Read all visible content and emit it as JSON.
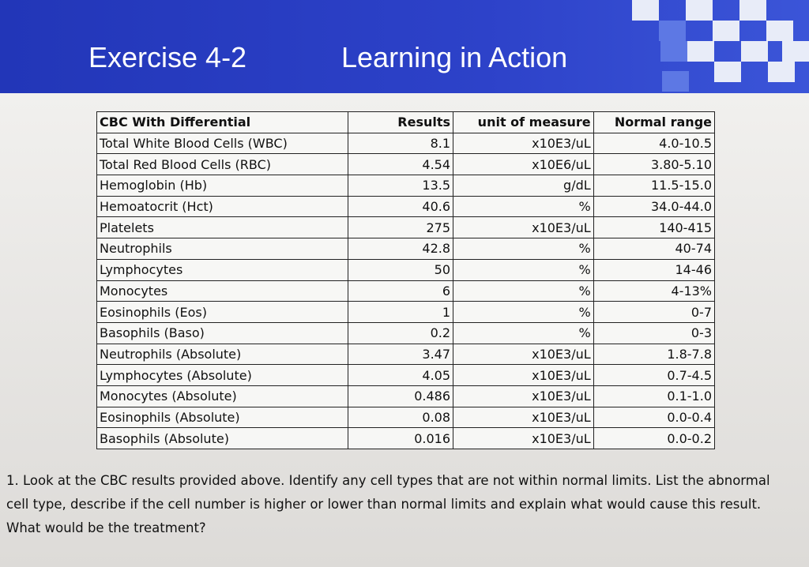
{
  "header": {
    "exercise": "Exercise 4-2",
    "title": "Learning in Action"
  },
  "table": {
    "columns": [
      "CBC With Differential",
      "Results",
      "unit of measure",
      "Normal range"
    ],
    "rows": [
      [
        "Total White Blood Cells (WBC)",
        "8.1",
        "x10E3/uL",
        "4.0-10.5"
      ],
      [
        "Total Red Blood Cells (RBC)",
        "4.54",
        "x10E6/uL",
        "3.80-5.10"
      ],
      [
        "Hemoglobin (Hb)",
        "13.5",
        "g/dL",
        "11.5-15.0"
      ],
      [
        "Hemoatocrit (Hct)",
        "40.6",
        "%",
        "34.0-44.0"
      ],
      [
        "Platelets",
        "275",
        "x10E3/uL",
        "140-415"
      ],
      [
        "Neutrophils",
        "42.8",
        "%",
        "40-74"
      ],
      [
        "Lymphocytes",
        "50",
        "%",
        "14-46"
      ],
      [
        "Monocytes",
        "6",
        "%",
        "4-13%"
      ],
      [
        "Eosinophils (Eos)",
        "1",
        "%",
        "0-7"
      ],
      [
        "Basophils (Baso)",
        "0.2",
        "%",
        "0-3"
      ],
      [
        "Neutrophils (Absolute)",
        "3.47",
        "x10E3/uL",
        "1.8-7.8"
      ],
      [
        "Lymphocytes (Absolute)",
        "4.05",
        "x10E3/uL",
        "0.7-4.5"
      ],
      [
        "Monocytes (Absolute)",
        "0.486",
        "x10E3/uL",
        "0.1-1.0"
      ],
      [
        "Eosinophils (Absolute)",
        "0.08",
        "x10E3/uL",
        "0.0-0.4"
      ],
      [
        "Basophils (Absolute)",
        "0.016",
        "x10E3/uL",
        "0.0-0.2"
      ]
    ]
  },
  "question": "1. Look at the CBC results provided above. Identify any cell types that are not within normal limits. List the abnormal cell type, describe if the cell number is higher or lower than normal limits and explain what would cause this result. What would be the treatment?"
}
